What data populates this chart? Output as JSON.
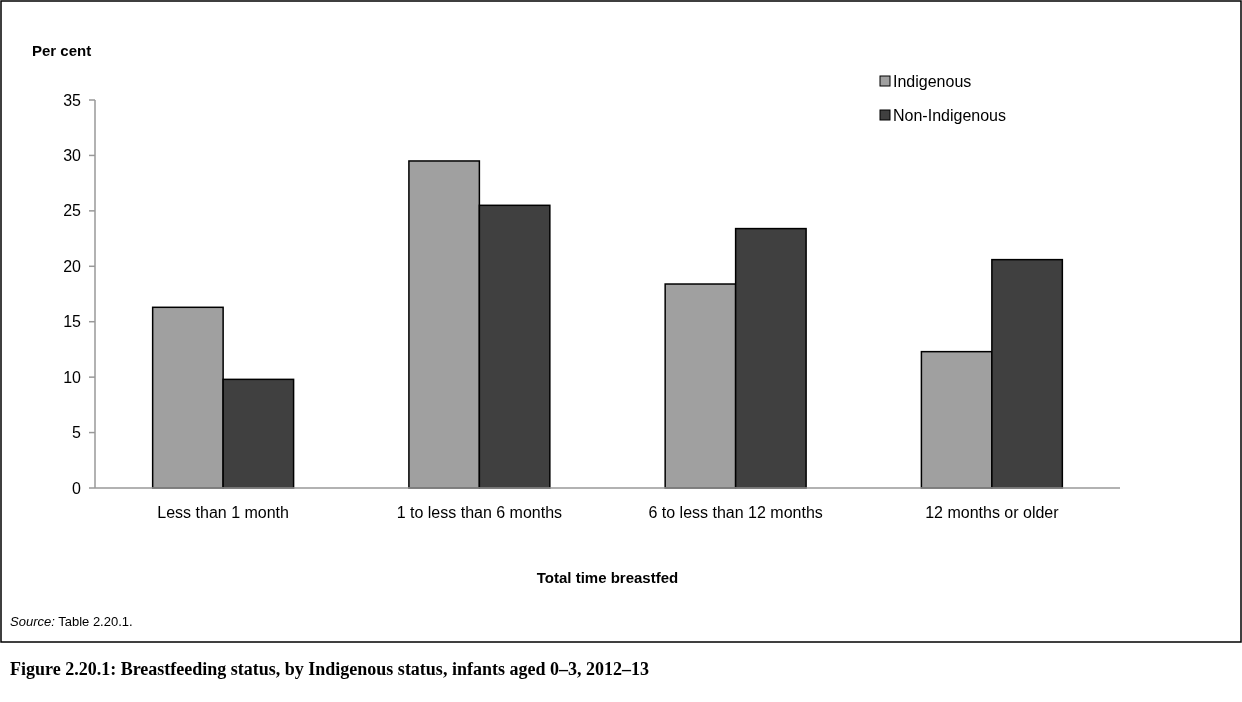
{
  "chart_data": {
    "type": "bar",
    "title": "Figure 2.20.1: Breastfeeding status, by Indigenous status, infants aged 0–3, 2012–13",
    "ylabel": "Per cent",
    "xlabel": "Total time breastfed",
    "annotations": [
      "Source: Table 2.20.1."
    ],
    "categories": [
      "Less than 1 month",
      "1 to less than 6 months",
      "6 to less than 12 months",
      "12 months or older"
    ],
    "series": [
      {
        "name": "Indigenous",
        "color": "#a0a0a0",
        "values": [
          16.3,
          29.5,
          18.4,
          12.3
        ]
      },
      {
        "name": "Non-Indigenous",
        "color": "#404040",
        "values": [
          9.8,
          25.5,
          23.4,
          20.6
        ]
      }
    ],
    "ylim": [
      0,
      35
    ],
    "yticks": [
      0,
      5,
      10,
      15,
      20,
      25,
      30,
      35
    ],
    "grid": false,
    "legend": "top right"
  }
}
